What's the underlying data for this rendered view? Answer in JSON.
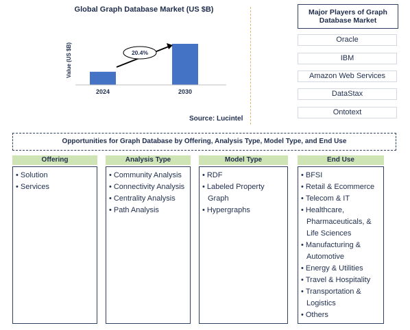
{
  "chart_data": {
    "type": "bar",
    "title": "Global Graph Database Market (US $B)",
    "ylabel": "Value (US $B)",
    "categories": [
      "2024",
      "2030"
    ],
    "values": [
      0.32,
      1.0
    ],
    "annotation": "20.4%",
    "bar_color": "#4472c4",
    "source": "Source: Lucintel"
  },
  "players": {
    "title": "Major Players of Graph Database Market",
    "items": [
      "Oracle",
      "IBM",
      "Amazon Web Services",
      "DataStax",
      "Ontotext"
    ]
  },
  "opportunities": {
    "title": "Opportunities for Graph Database by Offering, Analysis Type, Model Type, and End Use",
    "header_color": "#cfe4b5",
    "columns": [
      {
        "header": "Offering",
        "items": [
          "Solution",
          "Services"
        ]
      },
      {
        "header": "Analysis Type",
        "items": [
          "Community Analysis",
          "Connectivity Analysis",
          "Centrality Analysis",
          "Path Analysis"
        ]
      },
      {
        "header": "Model Type",
        "items": [
          "RDF",
          "Labeled Property Graph",
          "Hypergraphs"
        ]
      },
      {
        "header": "End Use",
        "items": [
          "BFSI",
          "Retail & Ecommerce",
          "Telecom & IT",
          "Healthcare, Pharmaceuticals, & Life Sciences",
          "Manufacturing & Automotive",
          "Energy & Utilities",
          "Travel & Hospitality",
          "Transportation & Logistics",
          "Others"
        ]
      }
    ]
  }
}
